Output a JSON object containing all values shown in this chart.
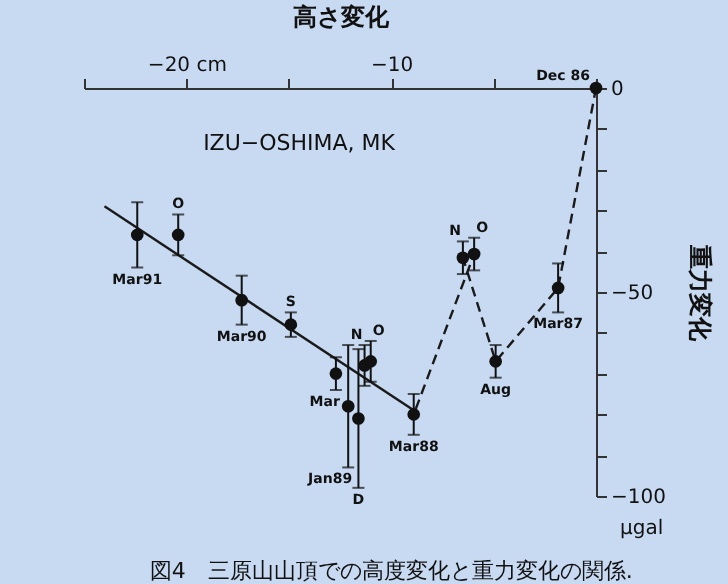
{
  "chart_data": {
    "type": "scatter",
    "xlabel": "高さ変化",
    "ylabel": "重力変化",
    "xlim": [
      -25,
      0
    ],
    "ylim": [
      -100,
      0
    ],
    "xticks": [
      {
        "value": -25,
        "label": null
      },
      {
        "value": -20,
        "label": "−20 cm"
      },
      {
        "value": -15,
        "label": null
      },
      {
        "value": -10,
        "label": "−10"
      },
      {
        "value": -5,
        "label": null
      },
      {
        "value": 0,
        "label": null
      }
    ],
    "yticks": [
      0,
      {
        "value": -10,
        "label": null
      },
      {
        "value": -20,
        "label": null
      },
      {
        "value": -30,
        "label": null
      },
      {
        "value": -40,
        "label": null
      },
      {
        "value": -50,
        "label": "−50"
      },
      {
        "value": -60,
        "label": null
      },
      {
        "value": -70,
        "label": null
      },
      {
        "value": -80,
        "label": null
      },
      {
        "value": -90,
        "label": null
      },
      {
        "value": -100,
        "label": "−100"
      }
    ],
    "grid": false,
    "series": [
      {
        "type": "line",
        "color": "#1a1a1a",
        "line_style": "solid",
        "x": [
          -24,
          -8.9
        ],
        "values": [
          -29,
          -79
        ]
      },
      {
        "type": "line",
        "color": "#1a1a1a",
        "line_style": "dashed",
        "x": [
          0,
          -1.85,
          -4.9,
          -6.5,
          -5.95,
          -8.9
        ],
        "values": [
          0,
          -49,
          -67,
          -41.6,
          -40.7,
          -80
        ]
      },
      {
        "color": "#111111",
        "marker": "circle",
        "x": [
          0,
          -1.85,
          -4.9,
          -6.5,
          -5.95,
          -8.9,
          -11.3,
          -11.0,
          -12.7,
          -12.1,
          -11.6,
          -14.9,
          -17.3,
          -20.4,
          -22.4
        ],
        "values": [
          0,
          -49,
          -67,
          -41.6,
          -40.7,
          -80,
          -68,
          -67,
          -70,
          -78,
          -81,
          -58,
          -52,
          -36,
          -36
        ],
        "errors": [
          null,
          6,
          4,
          4,
          4,
          5,
          5,
          5,
          4,
          15,
          17,
          3,
          6,
          5,
          8
        ]
      }
    ],
    "annotations": [
      {
        "text": "Dec 86",
        "x": 0,
        "y": 0
      },
      {
        "text": "Mar87",
        "x": -1.85,
        "y": -55
      },
      {
        "text": "Aug",
        "x": -4.9,
        "y": -71
      },
      {
        "text": "N",
        "x": -6.5,
        "y": -37.6
      },
      {
        "text": "O",
        "x": -5.95,
        "y": -36.7
      },
      {
        "text": "Mar88",
        "x": -8.9,
        "y": -85
      },
      {
        "text": "N",
        "x": -11.3,
        "y": -63
      },
      {
        "text": "O",
        "x": -11.0,
        "y": -62
      },
      {
        "text": "Mar",
        "x": -12.7,
        "y": -74
      },
      {
        "text": "Jan89",
        "x": -12.1,
        "y": -93
      },
      {
        "text": "D",
        "x": -11.6,
        "y": -98
      },
      {
        "text": "S",
        "x": -14.9,
        "y": -55
      },
      {
        "text": "Mar90",
        "x": -17.3,
        "y": -58
      },
      {
        "text": "O",
        "x": -20.4,
        "y": -31
      },
      {
        "text": "Mar91",
        "x": -22.4,
        "y": -44
      },
      "IZU−OSHIMA, MK",
      "μgal",
      "図4　三原山山頂での高度変化と重力変化の関係."
    ]
  }
}
